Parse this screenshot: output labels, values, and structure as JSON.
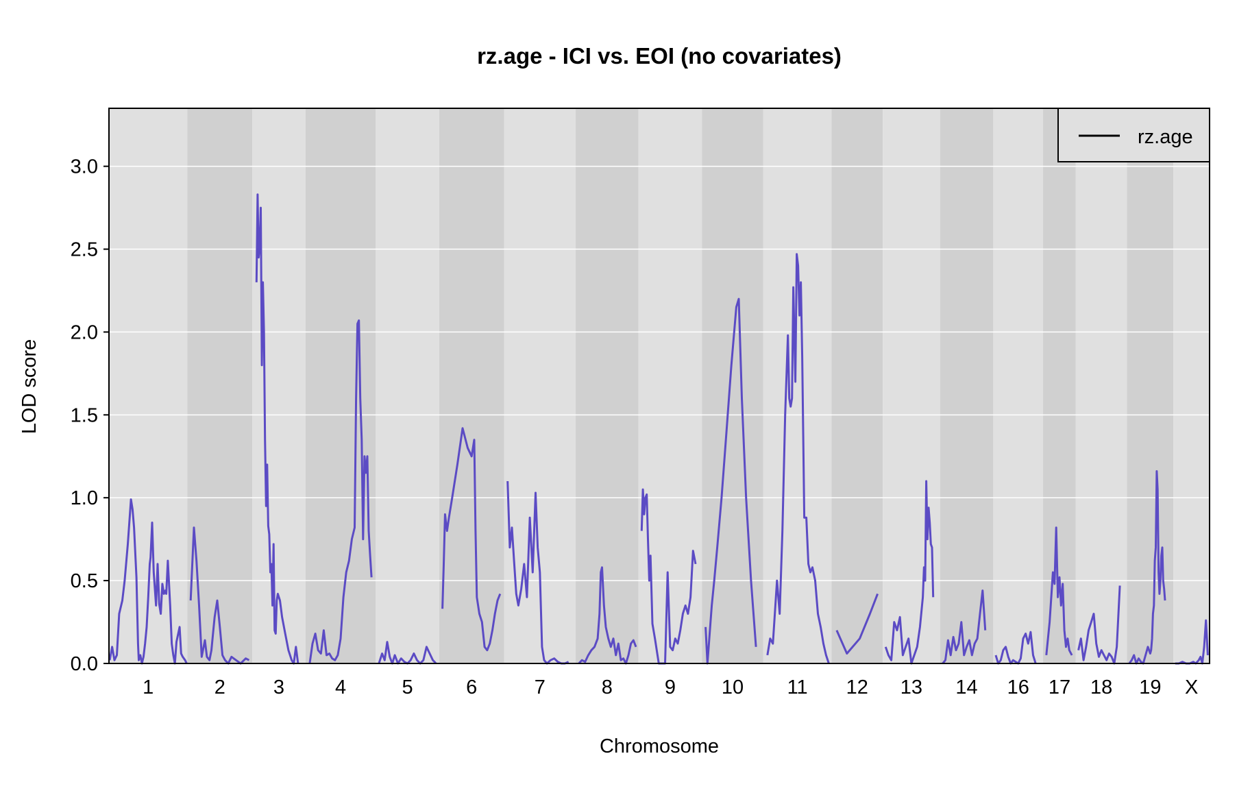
{
  "chart_data": {
    "type": "line",
    "title": "rz.age - ICI vs. EOI (no covariates)",
    "xlabel": "Chromosome",
    "ylabel": "LOD score",
    "ylim": [
      0,
      3.35
    ],
    "yticks": [
      0.0,
      0.5,
      1.0,
      1.5,
      2.0,
      2.5,
      3.0
    ],
    "ytick_labels": [
      "0.0",
      "0.5",
      "1.0",
      "1.5",
      "2.0",
      "2.5",
      "3.0"
    ],
    "grid": "horizontal",
    "legend": {
      "position": "top-right",
      "entries": [
        "rz.age"
      ]
    },
    "colors": {
      "line": "#5b4bc4",
      "band_light": "#e0e0e0",
      "band_dark": "#d0d0d0",
      "grid": "#ffffff"
    },
    "categories": [
      "1",
      "2",
      "3",
      "4",
      "5",
      "6",
      "7",
      "8",
      "9",
      "10",
      "11",
      "12",
      "13",
      "14",
      "16",
      "17",
      "18",
      "19",
      "X"
    ],
    "category_widths": [
      1.15,
      0.95,
      0.78,
      1.03,
      0.93,
      0.95,
      1.05,
      0.92,
      0.93,
      0.9,
      1.0,
      0.75,
      0.84,
      0.78,
      0.73,
      0.48,
      0.75,
      0.68,
      0.53
    ],
    "series": [
      {
        "name": "rz.age",
        "segments": [
          {
            "chr": "1",
            "x": [
              0.01,
              0.04,
              0.07,
              0.1,
              0.13,
              0.17,
              0.2,
              0.24,
              0.28,
              0.3,
              0.32,
              0.35,
              0.37,
              0.38,
              0.4,
              0.42,
              0.44,
              0.46,
              0.48,
              0.5,
              0.52,
              0.53,
              0.55,
              0.57,
              0.6,
              0.62,
              0.64,
              0.66,
              0.68,
              0.7,
              0.72,
              0.73,
              0.75,
              0.78,
              0.8,
              0.82,
              0.84,
              0.86,
              0.9,
              0.92,
              0.94,
              0.97,
              0.99
            ],
            "y": [
              0.02,
              0.1,
              0.02,
              0.05,
              0.3,
              0.38,
              0.5,
              0.72,
              0.99,
              0.93,
              0.82,
              0.52,
              0.12,
              0.02,
              0.05,
              0.0,
              0.04,
              0.12,
              0.22,
              0.4,
              0.6,
              0.64,
              0.85,
              0.55,
              0.35,
              0.6,
              0.36,
              0.3,
              0.48,
              0.42,
              0.44,
              0.42,
              0.62,
              0.35,
              0.12,
              0.05,
              0.0,
              0.13,
              0.22,
              0.06,
              0.04,
              0.02,
              0.0
            ]
          },
          {
            "chr": "2",
            "x": [
              0.05,
              0.1,
              0.14,
              0.18,
              0.22,
              0.27,
              0.3,
              0.34,
              0.37,
              0.4,
              0.42,
              0.46,
              0.5,
              0.54,
              0.58,
              0.63,
              0.68,
              0.75,
              0.82,
              0.9,
              0.95
            ],
            "y": [
              0.38,
              0.82,
              0.62,
              0.35,
              0.04,
              0.14,
              0.04,
              0.02,
              0.08,
              0.2,
              0.28,
              0.38,
              0.22,
              0.05,
              0.02,
              0.0,
              0.04,
              0.02,
              0.0,
              0.03,
              0.02
            ]
          },
          {
            "chr": "3",
            "x": [
              0.08,
              0.1,
              0.12,
              0.14,
              0.16,
              0.18,
              0.2,
              0.22,
              0.24,
              0.26,
              0.28,
              0.3,
              0.32,
              0.34,
              0.36,
              0.38,
              0.4,
              0.42,
              0.44,
              0.46,
              0.48,
              0.52,
              0.56,
              0.62,
              0.68,
              0.74,
              0.78,
              0.82,
              0.86
            ],
            "y": [
              2.3,
              2.83,
              2.45,
              2.52,
              2.75,
              1.8,
              2.3,
              2.0,
              1.35,
              0.95,
              1.2,
              0.83,
              0.78,
              0.55,
              0.6,
              0.35,
              0.72,
              0.2,
              0.18,
              0.38,
              0.42,
              0.38,
              0.28,
              0.18,
              0.08,
              0.02,
              0.0,
              0.1,
              0.0
            ]
          },
          {
            "chr": "4",
            "x": [
              0.06,
              0.1,
              0.14,
              0.18,
              0.22,
              0.26,
              0.3,
              0.34,
              0.38,
              0.42,
              0.46,
              0.5,
              0.54,
              0.58,
              0.62,
              0.66,
              0.7,
              0.72,
              0.74,
              0.76,
              0.78,
              0.8,
              0.82,
              0.84,
              0.86,
              0.88,
              0.9,
              0.92,
              0.94
            ],
            "y": [
              0.0,
              0.12,
              0.18,
              0.08,
              0.06,
              0.2,
              0.05,
              0.06,
              0.03,
              0.02,
              0.05,
              0.15,
              0.4,
              0.55,
              0.62,
              0.75,
              0.82,
              1.6,
              2.05,
              2.07,
              1.6,
              1.35,
              0.75,
              1.25,
              1.15,
              1.25,
              0.8,
              0.65,
              0.52
            ]
          },
          {
            "chr": "5",
            "x": [
              0.05,
              0.1,
              0.14,
              0.18,
              0.22,
              0.26,
              0.3,
              0.35,
              0.4,
              0.45,
              0.5,
              0.55,
              0.6,
              0.65,
              0.7,
              0.75,
              0.8,
              0.85,
              0.9,
              0.95
            ],
            "y": [
              0.0,
              0.06,
              0.02,
              0.13,
              0.04,
              0.0,
              0.05,
              0.0,
              0.03,
              0.01,
              0.0,
              0.02,
              0.06,
              0.02,
              0.0,
              0.02,
              0.1,
              0.06,
              0.02,
              0.0
            ]
          },
          {
            "chr": "6",
            "x": [
              0.05,
              0.07,
              0.09,
              0.12,
              0.15,
              0.2,
              0.28,
              0.36,
              0.44,
              0.5,
              0.54,
              0.56,
              0.58,
              0.62,
              0.66,
              0.7,
              0.74,
              0.78,
              0.82,
              0.86,
              0.9,
              0.94
            ],
            "y": [
              0.33,
              0.6,
              0.9,
              0.8,
              0.88,
              1.0,
              1.2,
              1.42,
              1.3,
              1.25,
              1.35,
              0.8,
              0.4,
              0.3,
              0.25,
              0.1,
              0.08,
              0.12,
              0.2,
              0.3,
              0.38,
              0.42
            ]
          },
          {
            "chr": "7",
            "x": [
              0.05,
              0.08,
              0.11,
              0.14,
              0.17,
              0.2,
              0.24,
              0.28,
              0.32,
              0.36,
              0.4,
              0.44,
              0.47,
              0.5,
              0.53,
              0.56,
              0.6,
              0.65,
              0.7,
              0.75,
              0.8,
              0.85,
              0.9
            ],
            "y": [
              1.1,
              0.7,
              0.82,
              0.62,
              0.42,
              0.35,
              0.45,
              0.6,
              0.4,
              0.88,
              0.55,
              1.03,
              0.7,
              0.55,
              0.1,
              0.02,
              0.0,
              0.02,
              0.03,
              0.01,
              0.0,
              0.0,
              0.01
            ]
          },
          {
            "chr": "8",
            "x": [
              0.05,
              0.1,
              0.15,
              0.2,
              0.25,
              0.3,
              0.35,
              0.38,
              0.4,
              0.42,
              0.45,
              0.48,
              0.52,
              0.56,
              0.6,
              0.64,
              0.68,
              0.72,
              0.76,
              0.8,
              0.84,
              0.88,
              0.92,
              0.96
            ],
            "y": [
              0.0,
              0.02,
              0.01,
              0.05,
              0.08,
              0.1,
              0.15,
              0.3,
              0.55,
              0.58,
              0.35,
              0.22,
              0.15,
              0.1,
              0.15,
              0.05,
              0.12,
              0.02,
              0.03,
              0.0,
              0.05,
              0.12,
              0.14,
              0.1
            ]
          },
          {
            "chr": "9",
            "x": [
              0.05,
              0.07,
              0.09,
              0.11,
              0.13,
              0.15,
              0.17,
              0.19,
              0.22,
              0.26,
              0.32,
              0.38,
              0.42,
              0.46,
              0.5,
              0.54,
              0.58,
              0.62,
              0.66,
              0.7,
              0.74,
              0.78,
              0.82,
              0.86,
              0.9
            ],
            "y": [
              0.8,
              1.05,
              0.9,
              1.0,
              1.02,
              0.75,
              0.5,
              0.65,
              0.24,
              0.15,
              0.0,
              0.0,
              0.0,
              0.55,
              0.1,
              0.08,
              0.15,
              0.12,
              0.2,
              0.3,
              0.35,
              0.3,
              0.4,
              0.68,
              0.6
            ]
          },
          {
            "chr": "10",
            "x": [
              0.06,
              0.09,
              0.12,
              0.16,
              0.2,
              0.25,
              0.32,
              0.4,
              0.48,
              0.56,
              0.6,
              0.65,
              0.72,
              0.8,
              0.88
            ],
            "y": [
              0.22,
              0.0,
              0.15,
              0.35,
              0.5,
              0.7,
              1.0,
              1.4,
              1.8,
              2.15,
              2.2,
              1.6,
              1.0,
              0.5,
              0.1
            ]
          },
          {
            "chr": "11",
            "x": [
              0.06,
              0.1,
              0.14,
              0.2,
              0.24,
              0.28,
              0.32,
              0.36,
              0.38,
              0.4,
              0.42,
              0.44,
              0.47,
              0.49,
              0.51,
              0.53,
              0.55,
              0.57,
              0.6,
              0.63,
              0.66,
              0.69,
              0.72,
              0.76,
              0.8,
              0.84,
              0.88,
              0.92,
              0.96
            ],
            "y": [
              0.05,
              0.15,
              0.12,
              0.5,
              0.3,
              0.8,
              1.5,
              1.98,
              1.6,
              1.55,
              1.6,
              2.27,
              1.7,
              2.47,
              2.4,
              2.1,
              2.3,
              1.85,
              0.88,
              0.88,
              0.6,
              0.55,
              0.58,
              0.5,
              0.3,
              0.22,
              0.12,
              0.05,
              0.0
            ]
          },
          {
            "chr": "12",
            "x": [
              0.1,
              0.3,
              0.55,
              0.75,
              0.9
            ],
            "y": [
              0.2,
              0.06,
              0.15,
              0.3,
              0.42
            ]
          },
          {
            "chr": "13",
            "x": [
              0.05,
              0.1,
              0.15,
              0.2,
              0.25,
              0.3,
              0.35,
              0.4,
              0.45,
              0.5,
              0.55,
              0.6,
              0.65,
              0.7,
              0.72,
              0.74,
              0.76,
              0.78,
              0.8,
              0.82,
              0.84,
              0.86,
              0.88
            ],
            "y": [
              0.1,
              0.05,
              0.02,
              0.25,
              0.2,
              0.28,
              0.05,
              0.1,
              0.15,
              0.0,
              0.05,
              0.1,
              0.22,
              0.4,
              0.58,
              0.5,
              1.1,
              0.75,
              0.94,
              0.85,
              0.72,
              0.7,
              0.4
            ]
          },
          {
            "chr": "14",
            "x": [
              0.05,
              0.1,
              0.15,
              0.2,
              0.25,
              0.3,
              0.35,
              0.4,
              0.45,
              0.5,
              0.55,
              0.6,
              0.65,
              0.7,
              0.75,
              0.8,
              0.85
            ],
            "y": [
              0.0,
              0.02,
              0.14,
              0.05,
              0.16,
              0.08,
              0.12,
              0.25,
              0.05,
              0.1,
              0.14,
              0.05,
              0.12,
              0.15,
              0.3,
              0.44,
              0.2
            ]
          },
          {
            "chr": "16",
            "x": [
              0.05,
              0.1,
              0.15,
              0.2,
              0.25,
              0.3,
              0.35,
              0.4,
              0.45,
              0.5,
              0.55,
              0.6,
              0.65,
              0.7,
              0.75,
              0.8,
              0.85
            ],
            "y": [
              0.05,
              0.0,
              0.02,
              0.08,
              0.1,
              0.04,
              0.0,
              0.02,
              0.01,
              0.0,
              0.03,
              0.15,
              0.18,
              0.12,
              0.19,
              0.05,
              0.0
            ]
          },
          {
            "chr": "17",
            "x": [
              0.1,
              0.2,
              0.3,
              0.35,
              0.4,
              0.45,
              0.5,
              0.55,
              0.6,
              0.65,
              0.7,
              0.75,
              0.8,
              0.88
            ],
            "y": [
              0.05,
              0.25,
              0.55,
              0.48,
              0.82,
              0.4,
              0.52,
              0.35,
              0.48,
              0.2,
              0.1,
              0.15,
              0.08,
              0.05
            ]
          },
          {
            "chr": "18",
            "x": [
              0.05,
              0.1,
              0.15,
              0.2,
              0.25,
              0.3,
              0.35,
              0.4,
              0.45,
              0.5,
              0.55,
              0.6,
              0.65,
              0.7,
              0.75,
              0.8,
              0.86
            ],
            "y": [
              0.08,
              0.15,
              0.02,
              0.1,
              0.2,
              0.25,
              0.3,
              0.12,
              0.04,
              0.08,
              0.05,
              0.02,
              0.06,
              0.04,
              0.0,
              0.1,
              0.47
            ]
          },
          {
            "chr": "19",
            "x": [
              0.05,
              0.1,
              0.15,
              0.2,
              0.25,
              0.3,
              0.35,
              0.4,
              0.45,
              0.5,
              0.52,
              0.54,
              0.56,
              0.58,
              0.6,
              0.62,
              0.64,
              0.66,
              0.68,
              0.7,
              0.72,
              0.74,
              0.76,
              0.78,
              0.8,
              0.82
            ],
            "y": [
              0.0,
              0.02,
              0.05,
              0.0,
              0.03,
              0.01,
              0.0,
              0.05,
              0.1,
              0.06,
              0.08,
              0.15,
              0.3,
              0.35,
              0.62,
              0.7,
              1.16,
              1.05,
              0.55,
              0.42,
              0.5,
              0.65,
              0.7,
              0.5,
              0.45,
              0.38
            ]
          },
          {
            "chr": "X",
            "x": [
              0.05,
              0.15,
              0.25,
              0.35,
              0.45,
              0.55,
              0.62,
              0.7,
              0.75,
              0.8,
              0.85,
              0.9,
              0.95
            ],
            "y": [
              0.0,
              0.0,
              0.01,
              0.0,
              0.0,
              0.01,
              0.0,
              0.02,
              0.04,
              0.0,
              0.1,
              0.26,
              0.05
            ]
          }
        ]
      }
    ]
  }
}
